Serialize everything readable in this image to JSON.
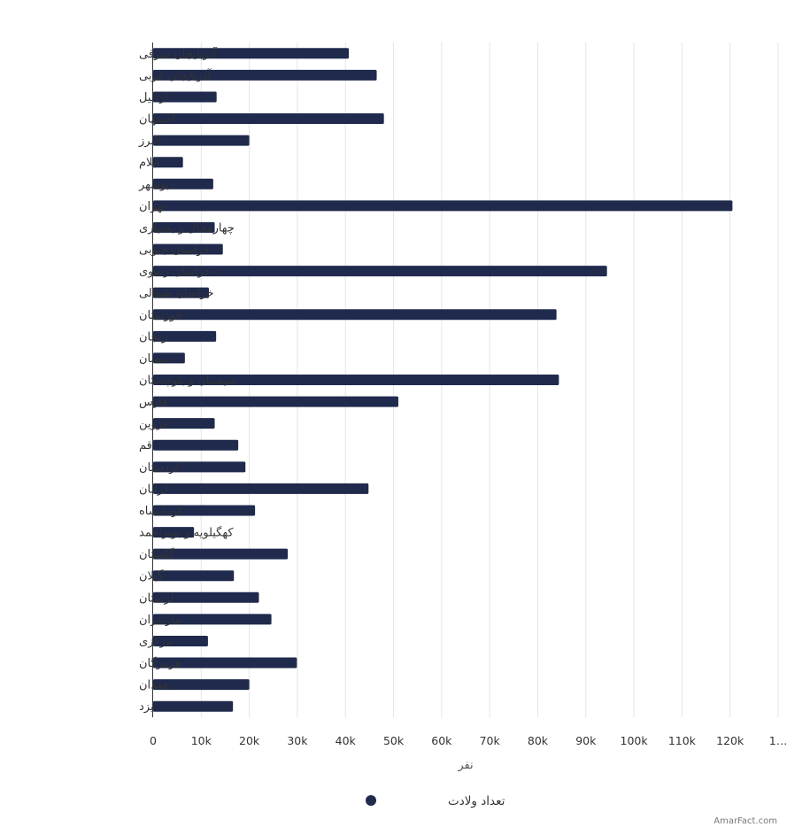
{
  "chart_data": {
    "type": "bar",
    "orientation": "horizontal",
    "categories": [
      "آذربایجان شرقی",
      "آذربایجان غربی",
      "اردبیل",
      "اصفهان",
      "البرز",
      "ایلام",
      "بوشهر",
      "تهران",
      "چهارمحال و بختیاری",
      "خراسان جنوبی",
      "خراسان رضوی",
      "خراسان شمالی",
      "خوزستان",
      "زنجان",
      "سمنان",
      "سیستان و بلوچستان",
      "فارس",
      "قزوین",
      "قم",
      "کردستان",
      "کرمان",
      "کرمانشاه",
      "کهگیلویه و بویراحمد",
      "گلستان",
      "گیلان",
      "لرستان",
      "مازندران",
      "مرکزی",
      "هرمزگان",
      "همدان",
      "یزد"
    ],
    "series": [
      {
        "name": "تعداد ولادت",
        "values": [
          40700,
          46500,
          13200,
          48000,
          20000,
          6200,
          12500,
          120500,
          12800,
          14500,
          94400,
          11600,
          83900,
          13100,
          6600,
          84400,
          51000,
          12800,
          17700,
          19200,
          44800,
          21200,
          8500,
          28000,
          16800,
          22000,
          24600,
          11400,
          29900,
          20000,
          16600
        ]
      }
    ],
    "xlabel": "نفر",
    "ylabel": "",
    "xlim": [
      0,
      130000
    ],
    "tick_labels": [
      "0",
      "10k",
      "20k",
      "30k",
      "40k",
      "50k",
      "60k",
      "70k",
      "80k",
      "90k",
      "100k",
      "110k",
      "120k",
      "1…"
    ],
    "grid": true,
    "legend_position": "bottom-center",
    "colors": {
      "bar": "#1f2a4d",
      "grid": "#e6e6e6",
      "axis": "#333333"
    }
  },
  "credit": "AmarFact.com"
}
